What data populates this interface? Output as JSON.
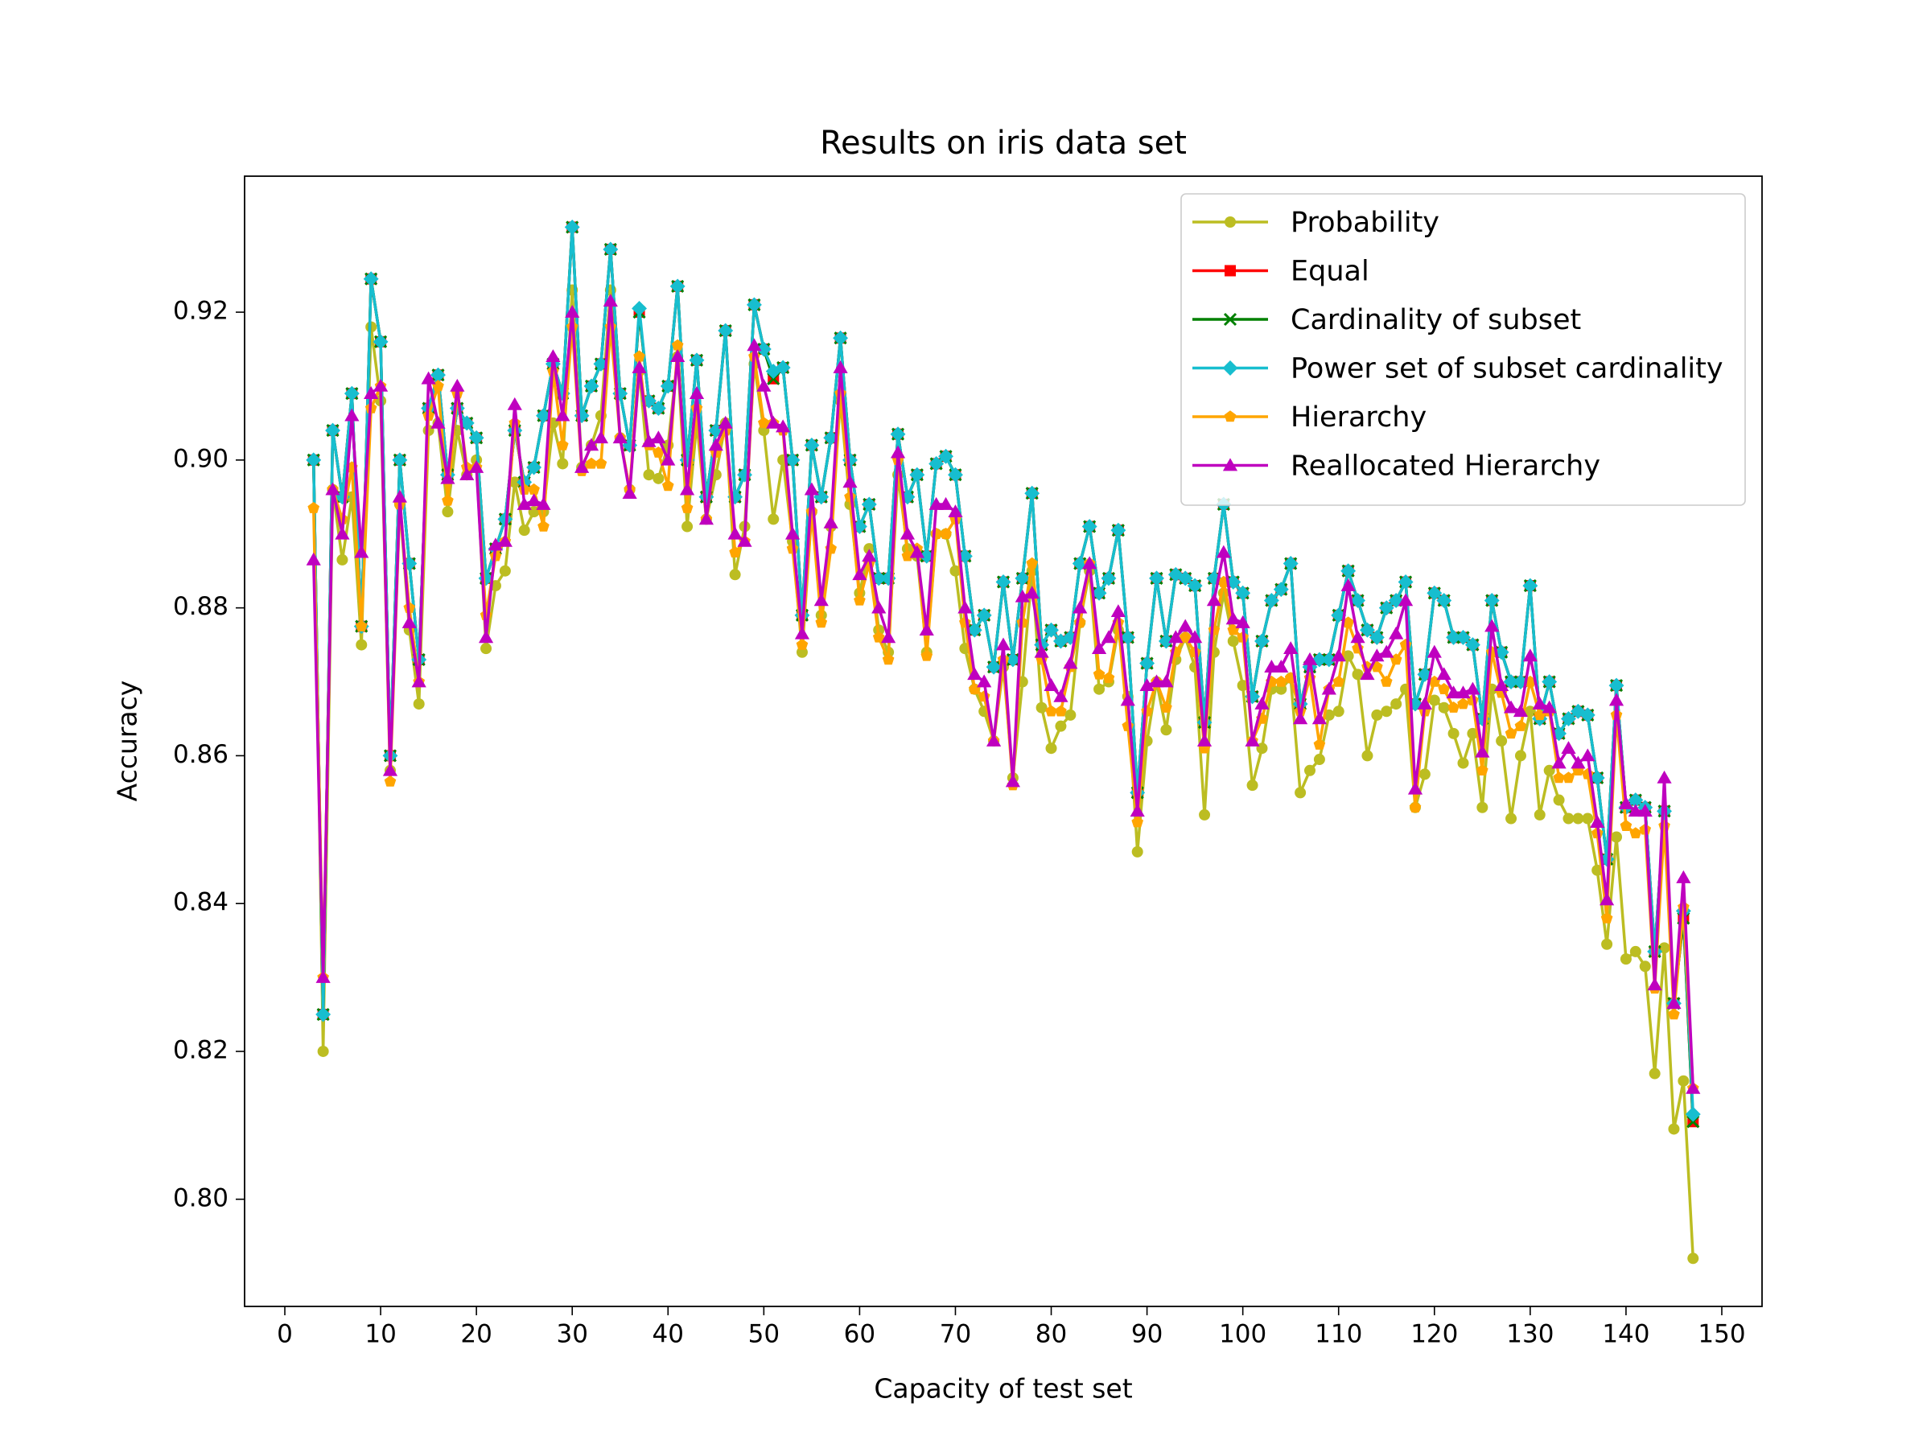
{
  "chart_data": {
    "type": "line",
    "title": "Results on iris data set",
    "xlabel": "Capacity of test set",
    "ylabel": "Accuracy",
    "xlim": [
      -4.2,
      154.2
    ],
    "ylim": [
      0.7855,
      0.9384
    ],
    "xticks": [
      0,
      10,
      20,
      30,
      40,
      50,
      60,
      70,
      80,
      90,
      100,
      110,
      120,
      130,
      140,
      150
    ],
    "yticks": [
      {
        "value": 0.8,
        "label": "0.80"
      },
      0.82,
      0.84,
      0.86,
      0.88,
      {
        "value": 0.9,
        "label": "0.90"
      },
      0.92
    ],
    "legend": "upper right",
    "x": [
      3,
      4,
      5,
      6,
      7,
      8,
      9,
      10,
      11,
      12,
      13,
      14,
      15,
      16,
      17,
      18,
      19,
      20,
      21,
      22,
      23,
      24,
      25,
      26,
      27,
      28,
      29,
      30,
      31,
      32,
      33,
      34,
      35,
      36,
      37,
      38,
      39,
      40,
      41,
      42,
      43,
      44,
      45,
      46,
      47,
      48,
      49,
      50,
      51,
      52,
      53,
      54,
      55,
      56,
      57,
      58,
      59,
      60,
      61,
      62,
      63,
      64,
      65,
      66,
      67,
      68,
      69,
      70,
      71,
      72,
      73,
      74,
      75,
      76,
      77,
      78,
      79,
      80,
      81,
      82,
      83,
      84,
      85,
      86,
      87,
      88,
      89,
      90,
      91,
      92,
      93,
      94,
      95,
      96,
      97,
      98,
      99,
      100,
      101,
      102,
      103,
      104,
      105,
      106,
      107,
      108,
      109,
      110,
      111,
      112,
      113,
      114,
      115,
      116,
      117,
      118,
      119,
      120,
      121,
      122,
      123,
      124,
      125,
      126,
      127,
      128,
      129,
      130,
      131,
      132,
      133,
      134,
      135,
      136,
      137,
      138,
      139,
      140,
      141,
      142,
      143,
      144,
      145,
      146,
      147
    ],
    "series": [
      {
        "name": "Probability",
        "color": "#bcbd22",
        "marker": "o",
        "values": [
          0.9,
          0.82,
          0.896,
          0.8865,
          0.895,
          0.875,
          0.918,
          0.908,
          0.858,
          0.894,
          0.877,
          0.867,
          0.904,
          0.905,
          0.893,
          0.904,
          0.898,
          0.9,
          0.8745,
          0.883,
          0.885,
          0.897,
          0.8905,
          0.893,
          0.893,
          0.905,
          0.8995,
          0.923,
          0.899,
          0.902,
          0.906,
          0.923,
          0.903,
          0.896,
          0.912,
          0.898,
          0.8975,
          0.902,
          0.914,
          0.891,
          0.905,
          0.892,
          0.898,
          0.905,
          0.8845,
          0.891,
          0.913,
          0.904,
          0.892,
          0.9,
          0.889,
          0.874,
          0.893,
          0.879,
          0.891,
          0.908,
          0.894,
          0.882,
          0.888,
          0.877,
          0.874,
          0.898,
          0.888,
          0.887,
          0.874,
          0.89,
          0.89,
          0.885,
          0.8745,
          0.869,
          0.866,
          0.862,
          0.872,
          0.857,
          0.87,
          0.885,
          0.8665,
          0.861,
          0.864,
          0.8655,
          0.878,
          0.885,
          0.869,
          0.87,
          0.877,
          0.868,
          0.847,
          0.862,
          0.87,
          0.8635,
          0.873,
          0.876,
          0.872,
          0.852,
          0.874,
          0.882,
          0.8755,
          0.8695,
          0.856,
          0.861,
          0.869,
          0.869,
          0.8705,
          0.855,
          0.858,
          0.8595,
          0.8655,
          0.866,
          0.8735,
          0.871,
          0.86,
          0.8655,
          0.866,
          0.867,
          0.869,
          0.853,
          0.8575,
          0.8675,
          0.8665,
          0.863,
          0.859,
          0.863,
          0.853,
          0.869,
          0.862,
          0.8515,
          0.86,
          0.866,
          0.852,
          0.858,
          0.854,
          0.8515,
          0.8515,
          0.8515,
          0.8445,
          0.8345,
          0.849,
          0.8325,
          0.8335,
          0.8315,
          0.817,
          0.834,
          0.8095,
          0.816,
          0.792
        ]
      },
      {
        "name": "Equal",
        "color": "#ff0000",
        "marker": "s",
        "values": [
          0.9,
          0.825,
          0.904,
          0.895,
          0.909,
          0.8775,
          0.9245,
          0.916,
          0.86,
          0.9,
          0.886,
          0.873,
          0.907,
          0.9115,
          0.898,
          0.907,
          0.905,
          0.903,
          0.884,
          0.888,
          0.892,
          0.904,
          0.897,
          0.899,
          0.906,
          0.913,
          0.909,
          0.9315,
          0.906,
          0.91,
          0.913,
          0.9285,
          0.909,
          0.902,
          0.92,
          0.908,
          0.907,
          0.91,
          0.9235,
          0.9,
          0.9135,
          0.895,
          0.904,
          0.9175,
          0.895,
          0.898,
          0.921,
          0.915,
          0.911,
          0.9125,
          0.9,
          0.879,
          0.902,
          0.895,
          0.903,
          0.9165,
          0.9,
          0.891,
          0.894,
          0.884,
          0.884,
          0.9035,
          0.895,
          0.898,
          0.887,
          0.8995,
          0.9005,
          0.898,
          0.887,
          0.877,
          0.879,
          0.872,
          0.8835,
          0.873,
          0.884,
          0.8955,
          0.875,
          0.877,
          0.8755,
          0.876,
          0.886,
          0.891,
          0.882,
          0.884,
          0.8905,
          0.876,
          0.855,
          0.8725,
          0.884,
          0.8755,
          0.8845,
          0.884,
          0.883,
          0.8645,
          0.884,
          0.894,
          0.8835,
          0.882,
          0.868,
          0.8755,
          0.881,
          0.8825,
          0.886,
          0.867,
          0.872,
          0.873,
          0.873,
          0.879,
          0.885,
          0.881,
          0.877,
          0.876,
          0.88,
          0.881,
          0.8835,
          0.867,
          0.871,
          0.882,
          0.881,
          0.876,
          0.876,
          0.875,
          0.865,
          0.881,
          0.874,
          0.87,
          0.87,
          0.883,
          0.865,
          0.87,
          0.863,
          0.865,
          0.866,
          0.8655,
          0.857,
          0.846,
          0.8695,
          0.853,
          0.854,
          0.853,
          0.8335,
          0.8525,
          0.8265,
          0.838,
          0.8105
        ]
      },
      {
        "name": "Cardinality of subset",
        "color": "#008000",
        "marker": "x",
        "values": [
          0.9,
          0.825,
          0.904,
          0.895,
          0.909,
          0.8775,
          0.9245,
          0.916,
          0.86,
          0.9,
          0.886,
          0.873,
          0.907,
          0.9115,
          0.898,
          0.907,
          0.905,
          0.903,
          0.884,
          0.888,
          0.892,
          0.904,
          0.897,
          0.899,
          0.906,
          0.913,
          0.909,
          0.9315,
          0.906,
          0.91,
          0.913,
          0.9285,
          0.909,
          0.902,
          0.92,
          0.908,
          0.907,
          0.91,
          0.9235,
          0.9,
          0.9135,
          0.895,
          0.904,
          0.9175,
          0.895,
          0.898,
          0.921,
          0.915,
          0.911,
          0.9125,
          0.9,
          0.879,
          0.902,
          0.895,
          0.903,
          0.9165,
          0.9,
          0.891,
          0.894,
          0.884,
          0.884,
          0.9035,
          0.895,
          0.898,
          0.887,
          0.8995,
          0.9005,
          0.898,
          0.887,
          0.877,
          0.879,
          0.872,
          0.8835,
          0.873,
          0.884,
          0.8955,
          0.875,
          0.877,
          0.8755,
          0.876,
          0.886,
          0.891,
          0.882,
          0.884,
          0.8905,
          0.876,
          0.855,
          0.8725,
          0.884,
          0.8755,
          0.8845,
          0.884,
          0.883,
          0.8645,
          0.884,
          0.894,
          0.8835,
          0.882,
          0.868,
          0.8755,
          0.881,
          0.8825,
          0.886,
          0.867,
          0.872,
          0.873,
          0.873,
          0.879,
          0.885,
          0.881,
          0.877,
          0.876,
          0.88,
          0.881,
          0.8835,
          0.867,
          0.871,
          0.882,
          0.881,
          0.876,
          0.876,
          0.875,
          0.865,
          0.881,
          0.874,
          0.87,
          0.87,
          0.883,
          0.865,
          0.87,
          0.863,
          0.865,
          0.866,
          0.8655,
          0.857,
          0.846,
          0.8695,
          0.853,
          0.854,
          0.853,
          0.8335,
          0.8525,
          0.8265,
          0.838,
          0.8105
        ]
      },
      {
        "name": "Power set of subset cardinality",
        "color": "#17becf",
        "marker": "D",
        "values": [
          0.9,
          0.825,
          0.904,
          0.895,
          0.909,
          0.8775,
          0.9245,
          0.916,
          0.86,
          0.9,
          0.886,
          0.873,
          0.907,
          0.9115,
          0.898,
          0.907,
          0.905,
          0.903,
          0.884,
          0.888,
          0.892,
          0.904,
          0.897,
          0.899,
          0.906,
          0.913,
          0.909,
          0.9315,
          0.906,
          0.91,
          0.913,
          0.9285,
          0.909,
          0.902,
          0.9205,
          0.908,
          0.907,
          0.91,
          0.9235,
          0.9,
          0.9135,
          0.895,
          0.904,
          0.9175,
          0.895,
          0.898,
          0.921,
          0.915,
          0.912,
          0.9125,
          0.9,
          0.879,
          0.902,
          0.895,
          0.903,
          0.9165,
          0.9,
          0.891,
          0.894,
          0.884,
          0.884,
          0.9035,
          0.895,
          0.898,
          0.887,
          0.8995,
          0.9005,
          0.898,
          0.887,
          0.877,
          0.879,
          0.872,
          0.8835,
          0.873,
          0.884,
          0.8955,
          0.875,
          0.877,
          0.8755,
          0.876,
          0.886,
          0.891,
          0.882,
          0.884,
          0.8905,
          0.876,
          0.855,
          0.8725,
          0.884,
          0.8755,
          0.8845,
          0.884,
          0.883,
          0.8645,
          0.884,
          0.894,
          0.8835,
          0.882,
          0.868,
          0.8755,
          0.881,
          0.8825,
          0.886,
          0.867,
          0.872,
          0.873,
          0.873,
          0.879,
          0.885,
          0.881,
          0.877,
          0.876,
          0.88,
          0.881,
          0.8835,
          0.867,
          0.871,
          0.882,
          0.881,
          0.876,
          0.876,
          0.875,
          0.865,
          0.881,
          0.874,
          0.87,
          0.87,
          0.883,
          0.865,
          0.87,
          0.863,
          0.865,
          0.866,
          0.8655,
          0.857,
          0.846,
          0.8695,
          0.853,
          0.854,
          0.853,
          0.8335,
          0.8525,
          0.8265,
          0.839,
          0.8115
        ]
      },
      {
        "name": "Hierarchy",
        "color": "#ffa500",
        "marker": "p",
        "values": [
          0.8935,
          0.83,
          0.896,
          0.892,
          0.899,
          0.8775,
          0.907,
          0.91,
          0.8565,
          0.894,
          0.88,
          0.87,
          0.906,
          0.91,
          0.8945,
          0.909,
          0.899,
          0.899,
          0.879,
          0.887,
          0.889,
          0.905,
          0.896,
          0.896,
          0.891,
          0.912,
          0.902,
          0.918,
          0.8985,
          0.8995,
          0.8995,
          0.918,
          0.903,
          0.896,
          0.914,
          0.902,
          0.901,
          0.8965,
          0.9155,
          0.8935,
          0.907,
          0.892,
          0.901,
          0.904,
          0.8875,
          0.889,
          0.914,
          0.905,
          0.905,
          0.904,
          0.888,
          0.875,
          0.893,
          0.878,
          0.888,
          0.909,
          0.895,
          0.881,
          0.886,
          0.876,
          0.873,
          0.9,
          0.887,
          0.888,
          0.8735,
          0.89,
          0.89,
          0.892,
          0.878,
          0.869,
          0.868,
          0.862,
          0.873,
          0.856,
          0.878,
          0.886,
          0.873,
          0.866,
          0.866,
          0.872,
          0.878,
          0.886,
          0.871,
          0.8705,
          0.878,
          0.864,
          0.851,
          0.866,
          0.87,
          0.8665,
          0.874,
          0.876,
          0.874,
          0.861,
          0.877,
          0.8835,
          0.877,
          0.876,
          0.862,
          0.865,
          0.87,
          0.87,
          0.8705,
          0.866,
          0.8705,
          0.8615,
          0.869,
          0.87,
          0.878,
          0.8745,
          0.872,
          0.872,
          0.87,
          0.873,
          0.875,
          0.853,
          0.866,
          0.87,
          0.869,
          0.8665,
          0.867,
          0.8675,
          0.858,
          0.874,
          0.8685,
          0.863,
          0.864,
          0.87,
          0.8655,
          0.866,
          0.857,
          0.857,
          0.858,
          0.8575,
          0.8495,
          0.838,
          0.8655,
          0.8505,
          0.8495,
          0.85,
          0.8285,
          0.8505,
          0.825,
          0.8395,
          0.815
        ]
      },
      {
        "name": "Reallocated Hierarchy",
        "color": "#bf00bf",
        "marker": "^",
        "values": [
          0.8865,
          0.83,
          0.896,
          0.89,
          0.906,
          0.8875,
          0.909,
          0.91,
          0.858,
          0.895,
          0.878,
          0.87,
          0.911,
          0.905,
          0.8975,
          0.91,
          0.898,
          0.899,
          0.876,
          0.8885,
          0.889,
          0.9075,
          0.894,
          0.8945,
          0.894,
          0.914,
          0.906,
          0.92,
          0.899,
          0.902,
          0.903,
          0.9215,
          0.903,
          0.8955,
          0.9125,
          0.9025,
          0.903,
          0.9,
          0.914,
          0.896,
          0.909,
          0.892,
          0.902,
          0.905,
          0.89,
          0.889,
          0.9155,
          0.91,
          0.905,
          0.9045,
          0.89,
          0.8765,
          0.896,
          0.881,
          0.8915,
          0.9125,
          0.897,
          0.8845,
          0.887,
          0.88,
          0.876,
          0.901,
          0.89,
          0.8875,
          0.877,
          0.894,
          0.894,
          0.893,
          0.88,
          0.871,
          0.87,
          0.862,
          0.875,
          0.8565,
          0.8815,
          0.882,
          0.874,
          0.8695,
          0.868,
          0.8725,
          0.88,
          0.886,
          0.8745,
          0.876,
          0.8795,
          0.8675,
          0.8525,
          0.8695,
          0.87,
          0.87,
          0.876,
          0.8775,
          0.876,
          0.862,
          0.881,
          0.8875,
          0.8785,
          0.878,
          0.862,
          0.867,
          0.872,
          0.872,
          0.8745,
          0.865,
          0.873,
          0.865,
          0.869,
          0.8735,
          0.883,
          0.876,
          0.871,
          0.8735,
          0.874,
          0.8765,
          0.881,
          0.8555,
          0.867,
          0.874,
          0.871,
          0.8685,
          0.8685,
          0.869,
          0.8605,
          0.8775,
          0.8695,
          0.8665,
          0.866,
          0.8735,
          0.867,
          0.8665,
          0.859,
          0.861,
          0.859,
          0.86,
          0.851,
          0.8405,
          0.8675,
          0.8535,
          0.8525,
          0.8525,
          0.829,
          0.857,
          0.8265,
          0.8435,
          0.815
        ]
      }
    ]
  }
}
